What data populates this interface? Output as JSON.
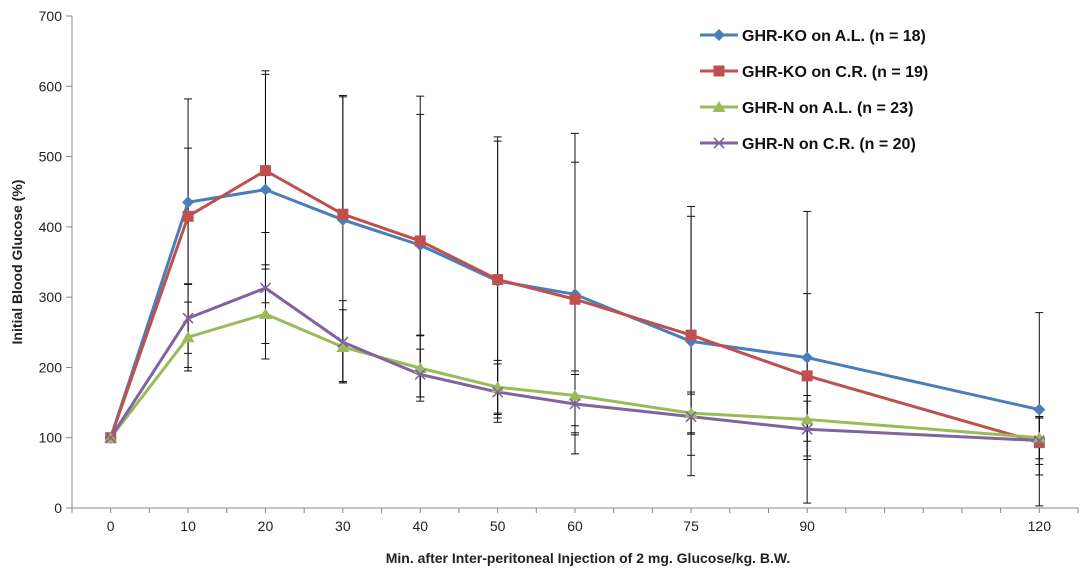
{
  "chart_data": {
    "type": "line",
    "title": "",
    "xlabel": "Min. after Inter-peritoneal Injection of 2 mg. Glucose/kg. B.W.",
    "ylabel": "Initial Blood Glucose (%)",
    "ylim": [
      0,
      700
    ],
    "yticks": [
      0,
      100,
      200,
      300,
      400,
      500,
      600,
      700
    ],
    "categories": [
      "0",
      "10",
      "20",
      "30",
      "40",
      "50",
      "60",
      "75",
      "90",
      "120"
    ],
    "x": [
      0,
      10,
      20,
      30,
      40,
      50,
      60,
      75,
      90,
      120
    ],
    "grid": false,
    "legend_position": "top-right",
    "series": [
      {
        "name": "GHR-KO on A.L. (n = 18)",
        "color": "#4a7ebb",
        "marker": "diamond",
        "values": [
          100,
          435,
          453,
          410,
          374,
          323,
          304,
          237,
          214,
          140
        ],
        "err_low": [
          null,
          319,
          292,
          null,
          158,
          133,
          107,
          107,
          74,
          3
        ],
        "err_high": [
          null,
          582,
          622,
          585,
          560,
          522,
          492,
          415,
          422,
          278
        ]
      },
      {
        "name": "GHR-KO on C.R. (n = 19)",
        "color": "#c0504d",
        "marker": "square",
        "values": [
          100,
          415,
          480,
          418,
          380,
          325,
          297,
          246,
          188,
          93
        ],
        "err_low": [
          null,
          220,
          346,
          178,
          246,
          122,
          77,
          75,
          7,
          47
        ],
        "err_high": [
          null,
          512,
          617,
          587,
          586,
          528,
          533,
          429,
          305,
          128
        ]
      },
      {
        "name": "GHR-N on A.L. (n = 23)",
        "color": "#9bbb59",
        "marker": "triangle",
        "values": [
          100,
          243,
          276,
          229,
          199,
          172,
          160,
          135,
          126,
          100
        ],
        "err_low": [
          null,
          195,
          212,
          178,
          152,
          135,
          117,
          105,
          95,
          70
        ],
        "err_high": [
          null,
          293,
          340,
          282,
          245,
          210,
          195,
          165,
          160,
          130
        ]
      },
      {
        "name": "GHR-N on C.R. (n = 20)",
        "color": "#8064a2",
        "marker": "x",
        "values": [
          100,
          270,
          313,
          236,
          190,
          165,
          148,
          130,
          112,
          96
        ],
        "err_low": [
          null,
          200,
          234,
          180,
          158,
          128,
          104,
          46,
          69,
          62
        ],
        "err_high": [
          null,
          318,
          392,
          295,
          226,
          205,
          190,
          162,
          152,
          130
        ]
      }
    ]
  }
}
